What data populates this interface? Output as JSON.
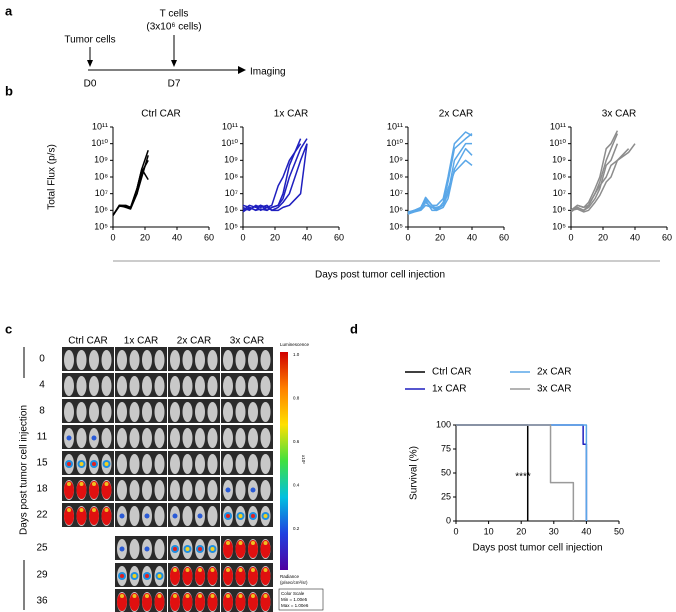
{
  "panel_labels": [
    "a",
    "b",
    "c",
    "d"
  ],
  "timeline": {
    "events": [
      {
        "label": "Tumor cells",
        "day": "D0"
      },
      {
        "label": "T cells",
        "detail": "(3x10⁶ cells)",
        "day": "D7"
      }
    ],
    "end": "Imaging"
  },
  "panel_b_xlabel": "Days post tumor cell injection",
  "imaging": {
    "columns": [
      "Ctrl CAR",
      "1x CAR",
      "2x CAR",
      "3x CAR"
    ],
    "rows": [
      0,
      4,
      8,
      11,
      15,
      18,
      22,
      25,
      29,
      36
    ],
    "ylabel": "Days post tumor cell injection",
    "colorbar": {
      "title": "Luminescence",
      "ticks": [
        "1.0",
        "0.8",
        "0.6",
        "0.4",
        "0.2"
      ],
      "unit": "x10⁶",
      "radiance": "Radiance",
      "radiance_unit": "(p/sec/cm²/sr)",
      "scale": [
        "Color Scale",
        "Min = 1.00e5",
        "Max = 1.00e6"
      ]
    }
  },
  "chart_data": [
    {
      "type": "line",
      "title": "Ctrl CAR",
      "ylabel": "Total Flux (p/s)",
      "log_y": true,
      "color": "#000000",
      "xlim": [
        0,
        60
      ],
      "xticks": [
        0,
        20,
        40,
        60
      ],
      "ylim": [
        100000,
        100000000000
      ],
      "yticks": [
        {
          "value": 100000,
          "label": "10⁵"
        },
        {
          "value": 1000000,
          "label": "10⁶"
        },
        {
          "value": 10000000,
          "label": "10⁷"
        },
        {
          "value": 100000000,
          "label": "10⁸"
        },
        {
          "value": 1000000000,
          "label": "10⁹"
        },
        {
          "value": 10000000000,
          "label": "10¹⁰"
        },
        {
          "value": 100000000000,
          "label": "10¹¹"
        }
      ],
      "x": [
        0,
        4,
        8,
        11,
        15,
        18,
        22
      ],
      "series": [
        {
          "values": [
            500000,
            2000000,
            2000000,
            1500000,
            20000000,
            300000000,
            4000000000
          ]
        },
        {
          "values": [
            500000,
            2000000,
            1800000,
            1500000,
            10000000,
            100000000,
            2000000000
          ]
        },
        {
          "values": [
            500000,
            1800000,
            1600000,
            1400000,
            20000000,
            300000000,
            70000000
          ]
        },
        {
          "values": [
            500000,
            2000000,
            1500000,
            1200000,
            10000000,
            200000000,
            1000000000
          ]
        }
      ]
    },
    {
      "type": "line",
      "title": "1x CAR",
      "log_y": true,
      "color": "#1f1fbf",
      "xlim": [
        0,
        60
      ],
      "xticks": [
        0,
        20,
        40,
        60
      ],
      "ylim": [
        100000,
        100000000000
      ],
      "yticks": [
        {
          "value": 100000,
          "label": "10⁵"
        },
        {
          "value": 1000000,
          "label": "10⁶"
        },
        {
          "value": 10000000,
          "label": "10⁷"
        },
        {
          "value": 100000000,
          "label": "10⁸"
        },
        {
          "value": 1000000000,
          "label": "10⁹"
        },
        {
          "value": 10000000000,
          "label": "10¹⁰"
        },
        {
          "value": 100000000000,
          "label": "10¹¹"
        }
      ],
      "x": [
        0,
        4,
        8,
        11,
        15,
        18,
        22,
        25,
        29,
        36,
        40
      ],
      "series": [
        {
          "values": [
            1000000,
            2000000,
            1500000,
            2000000,
            1000000,
            1500000,
            2000000,
            5000000,
            100000000,
            5000000000,
            20000000000
          ]
        },
        {
          "values": [
            1500000,
            1000000,
            2000000,
            1500000,
            2000000,
            1000000,
            1500000,
            3000000,
            10000000,
            1000000000,
            10000000000
          ]
        },
        {
          "values": [
            800000,
            1500000,
            1000000,
            2000000,
            1500000,
            2000000,
            30000000,
            100000000,
            1000000000,
            10000000000,
            null
          ]
        },
        {
          "values": [
            1000000,
            1200000,
            1800000,
            1000000,
            1500000,
            1000000,
            1000000,
            1500000,
            2000000,
            10000000,
            10000000000
          ]
        },
        {
          "values": [
            2000000,
            1500000,
            1000000,
            1200000,
            1000000,
            1500000,
            2000000,
            10000000,
            500000000,
            20000000000,
            null
          ]
        }
      ]
    },
    {
      "type": "line",
      "title": "2x CAR",
      "log_y": true,
      "color": "#5aa7e8",
      "xlim": [
        0,
        60
      ],
      "xticks": [
        0,
        20,
        40,
        60
      ],
      "ylim": [
        100000,
        100000000000
      ],
      "yticks": [
        {
          "value": 100000,
          "label": "10⁵"
        },
        {
          "value": 1000000,
          "label": "10⁶"
        },
        {
          "value": 10000000,
          "label": "10⁷"
        },
        {
          "value": 100000000,
          "label": "10⁸"
        },
        {
          "value": 1000000000,
          "label": "10⁹"
        },
        {
          "value": 10000000000,
          "label": "10¹⁰"
        },
        {
          "value": 100000000000,
          "label": "10¹¹"
        }
      ],
      "x": [
        0,
        4,
        8,
        11,
        15,
        18,
        22,
        25,
        29,
        36,
        40
      ],
      "series": [
        {
          "values": [
            800000,
            1000000,
            1500000,
            5000000,
            2000000,
            2000000,
            5000000,
            100000000,
            10000000000,
            50000000000,
            30000000000
          ]
        },
        {
          "values": [
            700000,
            1000000,
            1200000,
            3000000,
            1500000,
            1000000,
            3000000,
            50000000,
            5000000000,
            20000000000,
            40000000000
          ]
        },
        {
          "values": [
            600000,
            800000,
            1000000,
            2000000,
            1500000,
            1500000,
            2000000,
            10000000,
            1000000000,
            10000000000,
            10000000000
          ]
        },
        {
          "values": [
            600000,
            900000,
            1200000,
            4000000,
            1000000,
            1000000,
            1500000,
            5000000,
            300000000,
            5000000000,
            2000000000
          ]
        },
        {
          "values": [
            700000,
            1000000,
            1400000,
            6000000,
            2000000,
            1200000,
            2000000,
            20000000,
            200000000,
            1000000000,
            500000000
          ]
        }
      ]
    },
    {
      "type": "line",
      "title": "3x CAR",
      "log_y": true,
      "color": "#8c8c8c",
      "xlim": [
        0,
        60
      ],
      "xticks": [
        0,
        20,
        40,
        60
      ],
      "ylim": [
        100000,
        100000000000
      ],
      "yticks": [
        {
          "value": 100000,
          "label": "10⁵"
        },
        {
          "value": 1000000,
          "label": "10⁶"
        },
        {
          "value": 10000000,
          "label": "10⁷"
        },
        {
          "value": 100000000,
          "label": "10⁸"
        },
        {
          "value": 1000000000,
          "label": "10⁹"
        },
        {
          "value": 10000000000,
          "label": "10¹⁰"
        },
        {
          "value": 100000000000,
          "label": "10¹¹"
        }
      ],
      "x": [
        0,
        4,
        8,
        11,
        15,
        18,
        22,
        25,
        29,
        36,
        40
      ],
      "series": [
        {
          "values": [
            1000000,
            2000000,
            1500000,
            3000000,
            20000000,
            100000000,
            5000000000,
            10000000000,
            60000000000,
            null,
            null
          ]
        },
        {
          "values": [
            1000000,
            1500000,
            1000000,
            2000000,
            10000000,
            50000000,
            1000000000,
            5000000000,
            40000000000,
            null,
            null
          ]
        },
        {
          "values": [
            800000,
            1500000,
            1000000,
            1500000,
            5000000,
            20000000,
            500000000,
            1000000000,
            10000000000,
            null,
            null
          ]
        },
        {
          "values": [
            1000000,
            1200000,
            800000,
            1000000,
            3000000,
            8000000,
            50000000,
            100000000,
            1000000000,
            3000000000,
            10000000000
          ]
        },
        {
          "values": [
            1000000,
            2000000,
            1500000,
            2000000,
            10000000,
            30000000,
            100000000,
            500000000,
            1000000000,
            5000000000,
            null
          ]
        }
      ]
    },
    {
      "type": "line",
      "ylabel": "Survival (%)",
      "xlabel": "Days post tumor cell injection",
      "legend": true,
      "annotation": "****",
      "xlim": [
        0,
        50
      ],
      "xticks": [
        0,
        10,
        20,
        30,
        40,
        50
      ],
      "ylim": [
        0,
        100
      ],
      "yticks": [
        0,
        25,
        50,
        75,
        100
      ],
      "series": [
        {
          "name": "Ctrl CAR",
          "color": "#000000",
          "x": [
            0,
            22,
            22
          ],
          "values": [
            100,
            100,
            0
          ]
        },
        {
          "name": "1x CAR",
          "color": "#1f1fbf",
          "x": [
            0,
            39,
            39,
            40,
            40
          ],
          "values": [
            100,
            100,
            80,
            80,
            0
          ]
        },
        {
          "name": "2x CAR",
          "color": "#5aa7e8",
          "x": [
            0,
            40,
            40
          ],
          "values": [
            100,
            100,
            0
          ]
        },
        {
          "name": "3x CAR",
          "color": "#9a9a9a",
          "x": [
            0,
            29,
            29,
            36,
            36
          ],
          "values": [
            100,
            100,
            40,
            40,
            0
          ]
        }
      ]
    }
  ]
}
